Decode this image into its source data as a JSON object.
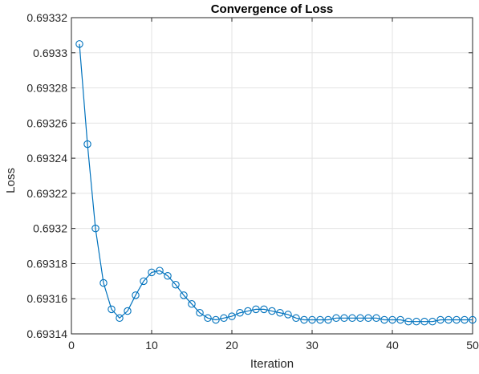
{
  "chart_data": {
    "type": "line",
    "title": "Convergence of Loss",
    "xlabel": "Iteration",
    "ylabel": "Loss",
    "xlim": [
      0,
      50
    ],
    "ylim": [
      0.69314,
      0.69332
    ],
    "xticks": [
      0,
      10,
      20,
      30,
      40,
      50
    ],
    "xtick_labels": [
      "0",
      "10",
      "20",
      "30",
      "40",
      "50"
    ],
    "yticks": [
      0.69314,
      0.69316,
      0.69318,
      0.6932,
      0.69322,
      0.69324,
      0.69326,
      0.69328,
      0.6933,
      0.69332
    ],
    "ytick_labels": [
      "0.69314",
      "0.69316",
      "0.69318",
      "0.6932",
      "0.69322",
      "0.69324",
      "0.69326",
      "0.69328",
      "0.6933",
      "0.69332"
    ],
    "grid": true,
    "line_color": "#0072BD",
    "marker": "circle",
    "series": [
      {
        "x": [
          1,
          2,
          3,
          4,
          5,
          6,
          7,
          8,
          9,
          10,
          11,
          12,
          13,
          14,
          15,
          16,
          17,
          18,
          19,
          20,
          21,
          22,
          23,
          24,
          25,
          26,
          27,
          28,
          29,
          30,
          31,
          32,
          33,
          34,
          35,
          36,
          37,
          38,
          39,
          40,
          41,
          42,
          43,
          44,
          45,
          46,
          47,
          48,
          49,
          50
        ],
        "y": [
          0.693305,
          0.693248,
          0.6932,
          0.693169,
          0.693154,
          0.693149,
          0.693153,
          0.693162,
          0.69317,
          0.693175,
          0.693176,
          0.693173,
          0.693168,
          0.693162,
          0.693157,
          0.693152,
          0.693149,
          0.693148,
          0.693149,
          0.69315,
          0.693152,
          0.693153,
          0.693154,
          0.693154,
          0.693153,
          0.693152,
          0.693151,
          0.693149,
          0.693148,
          0.693148,
          0.693148,
          0.693148,
          0.693149,
          0.693149,
          0.693149,
          0.693149,
          0.693149,
          0.693149,
          0.693148,
          0.693148,
          0.693148,
          0.693147,
          0.693147,
          0.693147,
          0.693147,
          0.693148,
          0.693148,
          0.693148,
          0.693148,
          0.693148
        ]
      }
    ]
  }
}
